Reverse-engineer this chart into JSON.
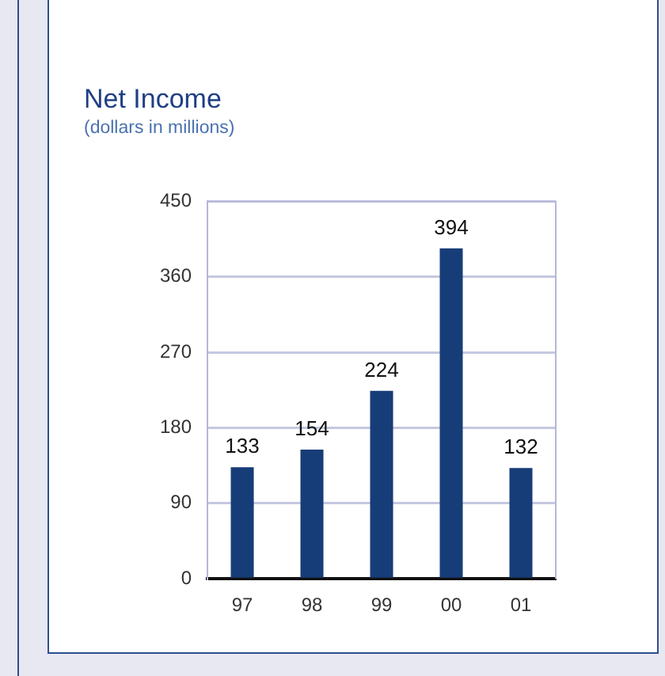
{
  "chart_data": {
    "type": "bar",
    "title": "Net Income",
    "subtitle": "(dollars in millions)",
    "categories": [
      "97",
      "98",
      "99",
      "00",
      "01"
    ],
    "values": [
      133,
      154,
      224,
      394,
      132
    ],
    "color": "#173d78",
    "ylim": [
      0,
      450
    ],
    "yticks": [
      0,
      90,
      180,
      270,
      360,
      450
    ],
    "grid": "y",
    "data_labels": true
  }
}
